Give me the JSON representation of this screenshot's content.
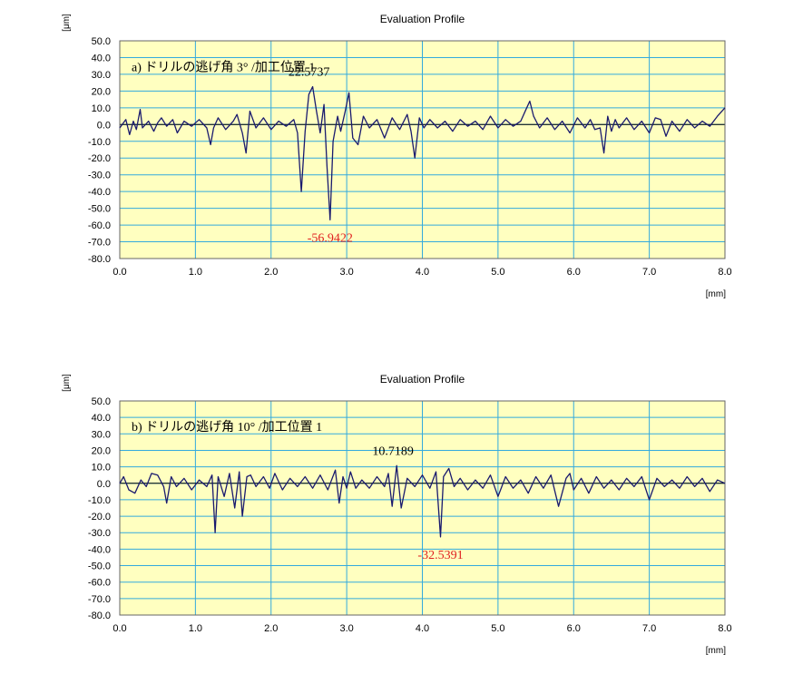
{
  "chart_data": [
    {
      "type": "line",
      "title": "Evaluation Profile",
      "annotation": "a) ドリルの逃げ角 3° /加工位置 1",
      "ylabel": "[μm]",
      "xlabel": "[mm]",
      "xlim": [
        0,
        8
      ],
      "ylim": [
        -80,
        50
      ],
      "x_ticks": [
        "0.0",
        "1.0",
        "2.0",
        "3.0",
        "4.0",
        "5.0",
        "6.0",
        "7.0",
        "8.0"
      ],
      "y_ticks": [
        "50.0",
        "40.0",
        "30.0",
        "20.0",
        "10.0",
        "0.0",
        "-10.0",
        "-20.0",
        "-30.0",
        "-40.0",
        "-50.0",
        "-60.0",
        "-70.0",
        "-80.0"
      ],
      "grid": true,
      "max_label": "22.5737",
      "min_label": "-56.9422",
      "series": [
        {
          "color": "#1a1a6e",
          "x": [
            0.0,
            0.08,
            0.13,
            0.18,
            0.22,
            0.27,
            0.3,
            0.38,
            0.45,
            0.5,
            0.55,
            0.62,
            0.7,
            0.76,
            0.85,
            0.95,
            1.05,
            1.15,
            1.2,
            1.24,
            1.3,
            1.4,
            1.5,
            1.55,
            1.62,
            1.67,
            1.72,
            1.8,
            1.9,
            2.0,
            2.1,
            2.2,
            2.3,
            2.35,
            2.4,
            2.45,
            2.5,
            2.55,
            2.6,
            2.65,
            2.7,
            2.74,
            2.78,
            2.82,
            2.88,
            2.92,
            2.98,
            3.03,
            3.08,
            3.15,
            3.22,
            3.3,
            3.4,
            3.5,
            3.6,
            3.7,
            3.8,
            3.85,
            3.9,
            3.96,
            4.02,
            4.1,
            4.2,
            4.3,
            4.4,
            4.5,
            4.6,
            4.7,
            4.8,
            4.9,
            5.0,
            5.1,
            5.2,
            5.3,
            5.37,
            5.42,
            5.47,
            5.55,
            5.65,
            5.75,
            5.85,
            5.95,
            6.05,
            6.15,
            6.22,
            6.28,
            6.35,
            6.4,
            6.45,
            6.5,
            6.55,
            6.6,
            6.7,
            6.8,
            6.9,
            7.0,
            7.08,
            7.15,
            7.22,
            7.3,
            7.4,
            7.5,
            7.6,
            7.7,
            7.8,
            7.9,
            8.0
          ],
          "y": [
            -2,
            3,
            -6,
            2,
            -3,
            9,
            -2,
            2,
            -4,
            1,
            4,
            -1,
            3,
            -5,
            2,
            -1,
            3,
            -2,
            -12,
            -2,
            4,
            -3,
            2,
            6,
            -5,
            -17,
            8,
            -2,
            4,
            -3,
            2,
            -1,
            3,
            -5,
            -40,
            -4,
            18,
            22.6,
            8,
            -5,
            12,
            -25,
            -56.9,
            -10,
            5,
            -4,
            8,
            19,
            -8,
            -12,
            5,
            -2,
            3,
            -8,
            4,
            -3,
            6,
            -4,
            -20,
            4,
            -2,
            3,
            -2,
            2,
            -4,
            3,
            -1,
            2,
            -3,
            5,
            -2,
            3,
            -1,
            2,
            9,
            14,
            5,
            -2,
            4,
            -3,
            2,
            -5,
            4,
            -2,
            3,
            -3,
            -2,
            -17,
            5,
            -4,
            3,
            -2,
            4,
            -3,
            2,
            -5,
            4,
            3,
            -7,
            2,
            -4,
            3,
            -2,
            2,
            -1,
            5,
            10
          ]
        }
      ]
    },
    {
      "type": "line",
      "title": "Evaluation Profile",
      "annotation": "b) ドリルの逃げ角 10° /加工位置 1",
      "ylabel": "[μm]",
      "xlabel": "[mm]",
      "xlim": [
        0,
        8
      ],
      "ylim": [
        -80,
        50
      ],
      "x_ticks": [
        "0.0",
        "1.0",
        "2.0",
        "3.0",
        "4.0",
        "5.0",
        "6.0",
        "7.0",
        "8.0"
      ],
      "y_ticks": [
        "50.0",
        "40.0",
        "30.0",
        "20.0",
        "10.0",
        "0.0",
        "-10.0",
        "-20.0",
        "-30.0",
        "-40.0",
        "-50.0",
        "-60.0",
        "-70.0",
        "-80.0"
      ],
      "grid": true,
      "max_label": "10.7189",
      "min_label": "-32.5391",
      "series": [
        {
          "color": "#1a1a6e",
          "x": [
            0.0,
            0.05,
            0.12,
            0.2,
            0.28,
            0.35,
            0.42,
            0.5,
            0.58,
            0.62,
            0.68,
            0.75,
            0.85,
            0.95,
            1.05,
            1.15,
            1.22,
            1.26,
            1.3,
            1.38,
            1.45,
            1.52,
            1.58,
            1.62,
            1.68,
            1.73,
            1.8,
            1.9,
            1.98,
            2.05,
            2.15,
            2.25,
            2.35,
            2.45,
            2.55,
            2.65,
            2.75,
            2.85,
            2.9,
            2.95,
            3.0,
            3.05,
            3.12,
            3.2,
            3.3,
            3.4,
            3.5,
            3.55,
            3.6,
            3.66,
            3.72,
            3.8,
            3.9,
            4.0,
            4.1,
            4.18,
            4.24,
            4.28,
            4.35,
            4.42,
            4.5,
            4.6,
            4.7,
            4.8,
            4.9,
            5.0,
            5.1,
            5.2,
            5.3,
            5.4,
            5.5,
            5.6,
            5.7,
            5.8,
            5.9,
            5.95,
            6.0,
            6.1,
            6.2,
            6.3,
            6.4,
            6.5,
            6.6,
            6.7,
            6.8,
            6.9,
            7.0,
            7.1,
            7.2,
            7.3,
            7.4,
            7.5,
            7.6,
            7.7,
            7.8,
            7.9,
            8.0
          ],
          "y": [
            0,
            4,
            -4,
            -6,
            2,
            -2,
            6,
            5,
            -2,
            -12,
            4,
            -2,
            3,
            -4,
            2,
            -2,
            5,
            -30,
            4,
            -8,
            6,
            -15,
            7,
            -20,
            4,
            5,
            -2,
            4,
            -3,
            6,
            -4,
            3,
            -2,
            4,
            -3,
            5,
            -4,
            8,
            -12,
            4,
            -3,
            7,
            -3,
            2,
            -3,
            4,
            -2,
            6,
            -14,
            10.7,
            -15,
            3,
            -2,
            5,
            -3,
            7,
            -32.5,
            4,
            9,
            -2,
            3,
            -4,
            2,
            -3,
            5,
            -8,
            4,
            -3,
            2,
            -6,
            4,
            -3,
            5,
            -14,
            3,
            6,
            -4,
            3,
            -6,
            4,
            -3,
            2,
            -4,
            3,
            -2,
            4,
            -10,
            3,
            -2,
            2,
            -3,
            4,
            -2,
            3,
            -5,
            2,
            0
          ]
        }
      ]
    }
  ]
}
